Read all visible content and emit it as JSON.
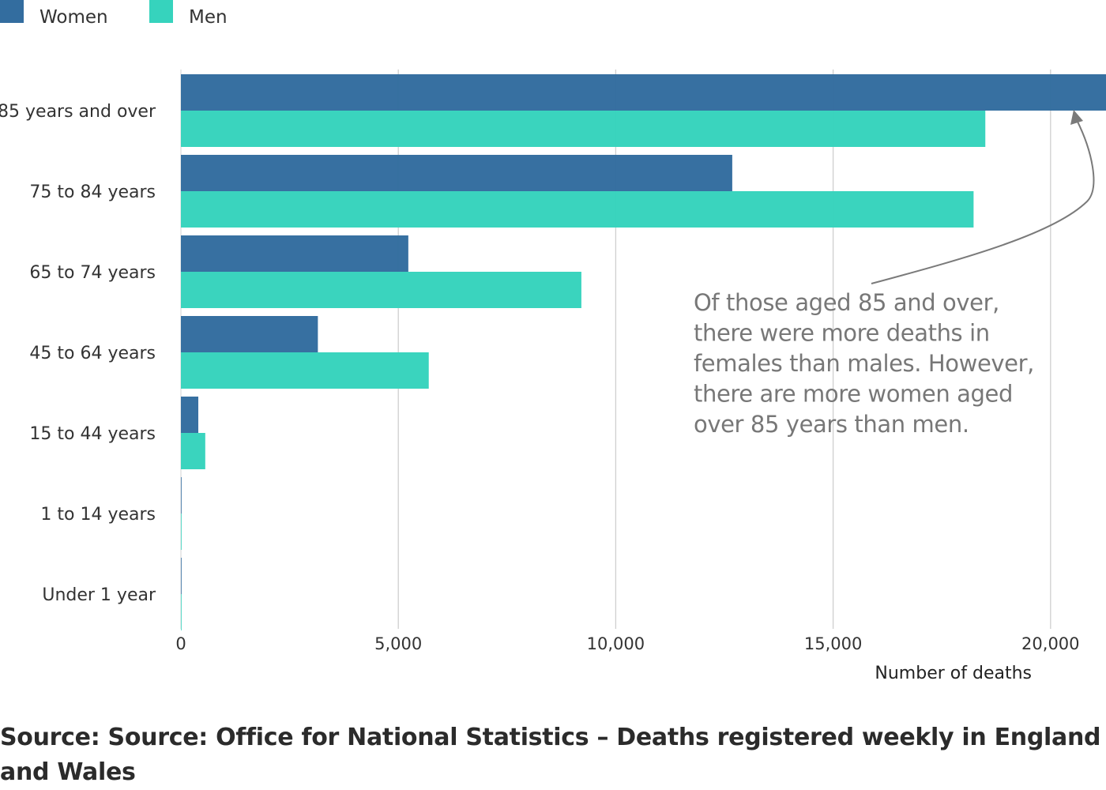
{
  "chart_data": {
    "type": "bar",
    "orientation": "horizontal",
    "categories": [
      "85 years and over",
      "75 to 84 years",
      "65 to 74 years",
      "45 to 64 years",
      "15 to 44 years",
      "1 to 14 years",
      "Under 1 year"
    ],
    "series": [
      {
        "name": "Women",
        "color": "#336d9f",
        "values": [
          21400,
          12680,
          5230,
          3150,
          400,
          8,
          5
        ]
      },
      {
        "name": "Men",
        "color": "#36d3bd",
        "values": [
          18500,
          18230,
          9210,
          5700,
          560,
          12,
          6
        ]
      }
    ],
    "xlabel": "Number of deaths",
    "ylabel": "",
    "xlim": [
      0,
      21300
    ],
    "x_ticks": [
      0,
      5000,
      10000,
      15000,
      20000
    ],
    "x_tick_labels": [
      "0",
      "5,000",
      "10,000",
      "15,000",
      "20,000"
    ],
    "grid": true,
    "legend_position": "top-left",
    "annotation": {
      "lines": [
        "Of those aged 85 and over,",
        "there were more deaths in",
        "females than males. However,",
        "there are more women aged",
        "over 85 years than men."
      ],
      "points_to": "85 years and over"
    }
  },
  "source": "Source: Source: Office for National Statistics – Deaths registered weekly in England and Wales"
}
